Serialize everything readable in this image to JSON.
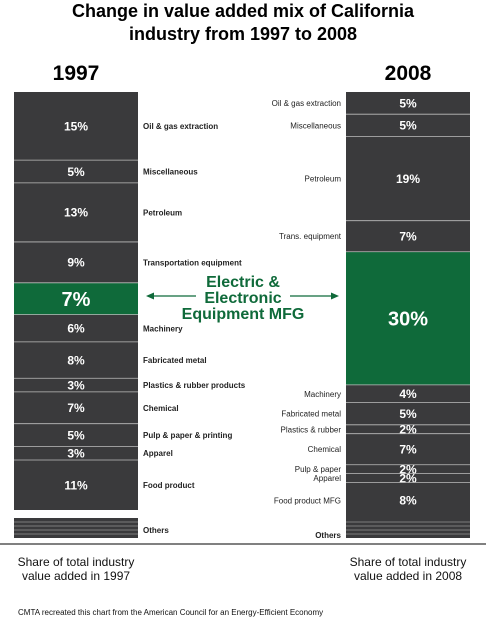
{
  "chart_data": {
    "type": "bar",
    "title_lines": [
      "Change in value added mix of California",
      "industry from 1997 to 2008"
    ],
    "columns": [
      {
        "year": "1997",
        "caption_lines": [
          "Share of total industry",
          "value added in 1997"
        ],
        "segments": [
          {
            "label": "Oil & gas extraction",
            "value": 15,
            "text": "15%"
          },
          {
            "label": "Miscellaneous",
            "value": 5,
            "text": "5%"
          },
          {
            "label": "Petroleum",
            "value": 13,
            "text": "13%"
          },
          {
            "label": "Transportation equipment",
            "value": 9,
            "text": "9%"
          },
          {
            "label": "",
            "value": 7,
            "text": "7%",
            "highlight": true
          },
          {
            "label": "Machinery",
            "value": 6,
            "text": "6%"
          },
          {
            "label": "Fabricated metal",
            "value": 8,
            "text": "8%"
          },
          {
            "label": "Plastics & rubber products",
            "value": 3,
            "text": "3%"
          },
          {
            "label": "Chemical",
            "value": 7,
            "text": "7%"
          },
          {
            "label": "Pulp & paper  & printing",
            "value": 5,
            "text": "5%"
          },
          {
            "label": "Apparel",
            "value": 3,
            "text": "3%"
          },
          {
            "label": "Food product",
            "value": 11,
            "text": "11%"
          }
        ],
        "others_label": "Others"
      },
      {
        "year": "2008",
        "caption_lines": [
          "Share of total industry",
          "value added in 2008"
        ],
        "segments": [
          {
            "label": "Oil & gas extraction",
            "value": 5,
            "text": "5%"
          },
          {
            "label": "Miscellaneous",
            "value": 5,
            "text": "5%"
          },
          {
            "label": "Petroleum",
            "value": 19,
            "text": "19%"
          },
          {
            "label": "Trans. equipment",
            "value": 7,
            "text": "7%"
          },
          {
            "label": "",
            "value": 30,
            "text": "30%",
            "highlight": true
          },
          {
            "label": "Machinery",
            "value": 4,
            "text": "4%"
          },
          {
            "label": "Fabricated metal",
            "value": 5,
            "text": "5%"
          },
          {
            "label": "Plastics & rubber",
            "value": 2,
            "text": "2%"
          },
          {
            "label": "Chemical",
            "value": 7,
            "text": "7%"
          },
          {
            "label": "Pulp & paper",
            "value": 2,
            "text": "2%"
          },
          {
            "label": "Apparel",
            "value": 2,
            "text": "2%"
          },
          {
            "label": "Food product MFG",
            "value": 8,
            "text": "8%"
          }
        ],
        "others_label": "Others"
      }
    ],
    "highlight_label_lines": [
      "Electric &",
      "Electronic",
      "Equipment MFG"
    ],
    "colors": {
      "segment": "#3a3a3c",
      "highlight": "#0f6a3a",
      "divider": "#bdbdbd",
      "text_on_bar": "#ffffff",
      "highlight_text": "#0f6a3a"
    }
  },
  "footnote": "CMTA recreated this chart from the American Council for an Energy-Efficient Economy"
}
